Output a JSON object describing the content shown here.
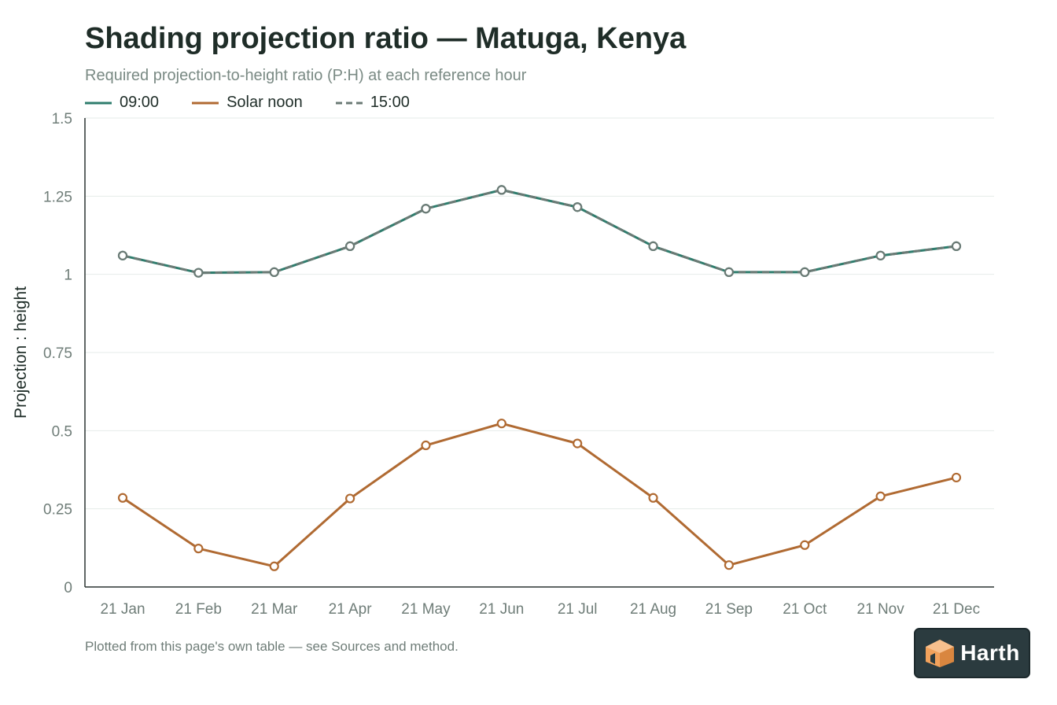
{
  "chart_data": {
    "type": "line",
    "title": "Shading projection ratio — Matuga, Kenya",
    "subtitle": "Required projection-to-height ratio (P:H) at each reference hour",
    "ylabel": "Projection : height",
    "xlabel": "",
    "ylim": [
      0,
      1.5
    ],
    "yticks": [
      0,
      0.25,
      0.5,
      0.75,
      1,
      1.25,
      1.5
    ],
    "ytick_labels": [
      "0",
      "0.25",
      "0.5",
      "0.75",
      "1",
      "1.25",
      "1.5"
    ],
    "categories": [
      "21 Jan",
      "21 Feb",
      "21 Mar",
      "21 Apr",
      "21 May",
      "21 Jun",
      "21 Jul",
      "21 Aug",
      "21 Sep",
      "21 Oct",
      "21 Nov",
      "21 Dec"
    ],
    "grid": true,
    "legend_position": "top-left",
    "series": [
      {
        "name": "09:00",
        "color": "#2f7d6d",
        "style": "solid",
        "values": [
          1.06,
          1.005,
          1.007,
          1.09,
          1.21,
          1.27,
          1.215,
          1.09,
          1.007,
          1.007,
          1.06,
          1.09
        ]
      },
      {
        "name": "Solar noon",
        "color": "#b06a32",
        "style": "solid",
        "values": [
          0.285,
          0.123,
          0.066,
          0.283,
          0.453,
          0.523,
          0.459,
          0.285,
          0.07,
          0.134,
          0.29,
          0.35
        ]
      },
      {
        "name": "15:00",
        "color": "#6b7a75",
        "style": "dashed",
        "values": [
          1.06,
          1.005,
          1.007,
          1.09,
          1.21,
          1.27,
          1.215,
          1.09,
          1.007,
          1.007,
          1.06,
          1.09
        ]
      }
    ]
  },
  "footnote": "Plotted from this page's own table — see Sources and method.",
  "logo": {
    "text": "Harth",
    "icon": "house-box-icon",
    "colors": {
      "background": "#2b3b3f",
      "accent": "#f2a25c"
    }
  }
}
